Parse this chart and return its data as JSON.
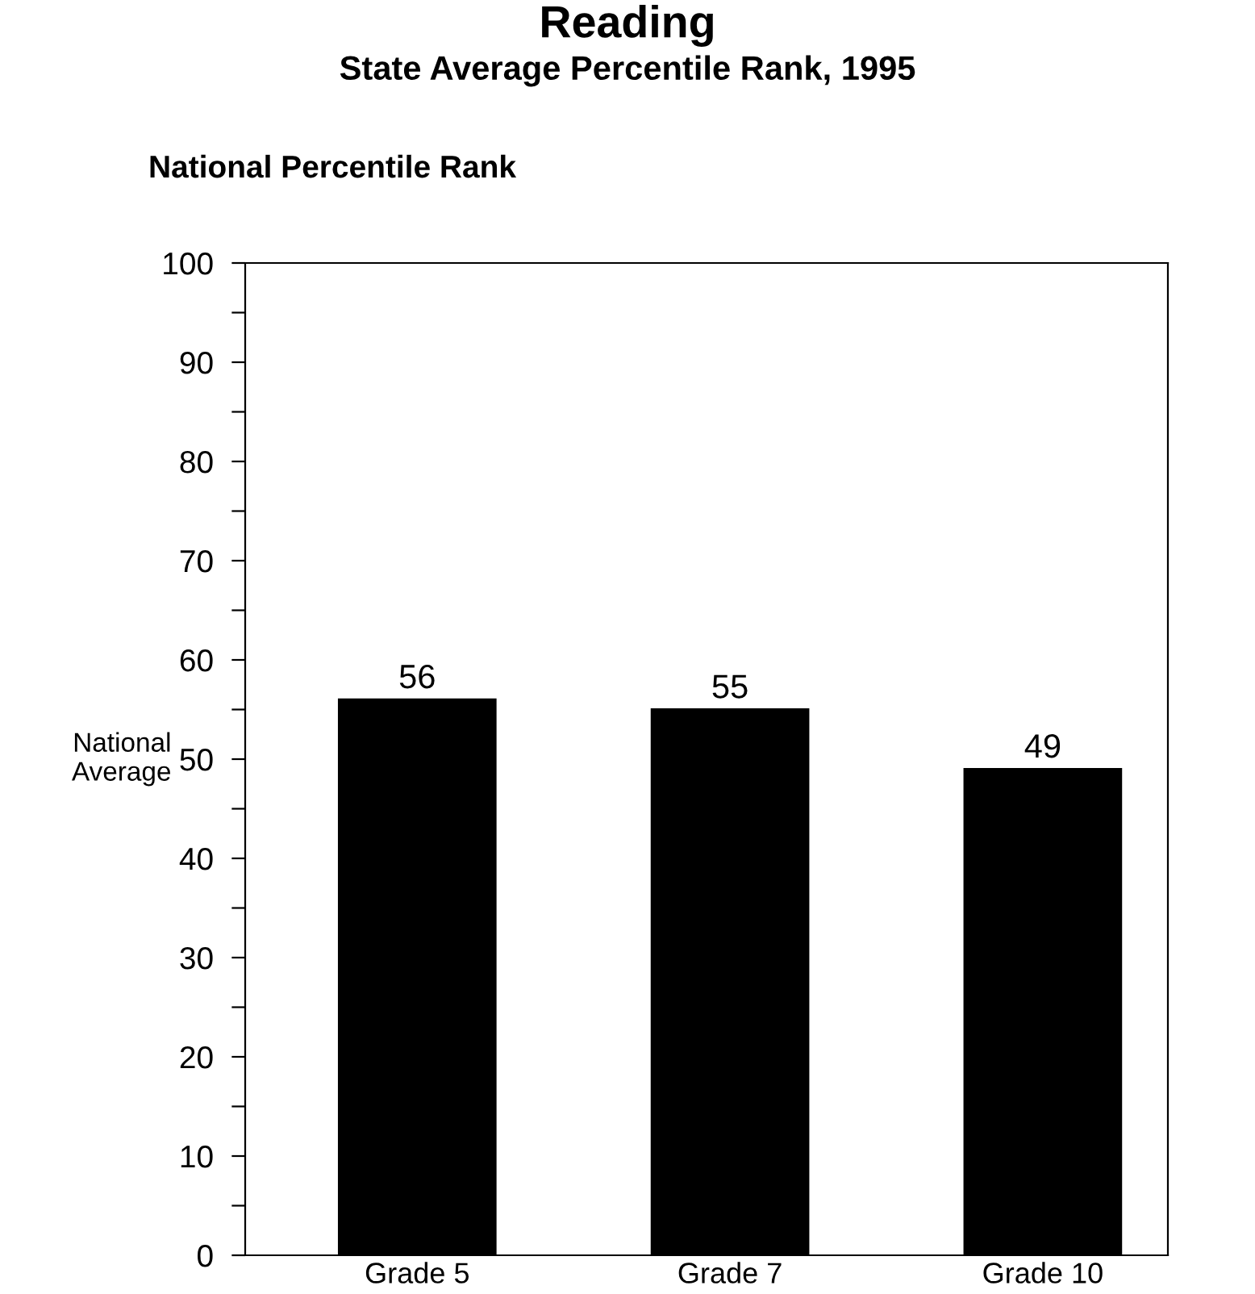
{
  "chart_data": {
    "type": "bar",
    "title": "Reading",
    "subtitle": "State Average Percentile Rank, 1995",
    "ylabel": "National Percentile Rank",
    "categories": [
      "Grade 5",
      "Grade 7",
      "Grade 10"
    ],
    "values": [
      56,
      55,
      49
    ],
    "color": "#000000",
    "ylim": [
      0,
      100
    ],
    "yticks": [
      0,
      {
        "value": 5,
        "label": null
      },
      10,
      {
        "value": 15,
        "label": null
      },
      20,
      {
        "value": 25,
        "label": null
      },
      30,
      {
        "value": 35,
        "label": null
      },
      40,
      {
        "value": 45,
        "label": null
      },
      50,
      {
        "value": 55,
        "label": null
      },
      60,
      {
        "value": 65,
        "label": null
      },
      70,
      {
        "value": 75,
        "label": null
      },
      80,
      {
        "value": 85,
        "label": null
      },
      90,
      {
        "value": 95,
        "label": null
      },
      100
    ],
    "data_labels": true,
    "grid": false,
    "legend": false,
    "annotations": [
      "National\nAverage"
    ]
  }
}
